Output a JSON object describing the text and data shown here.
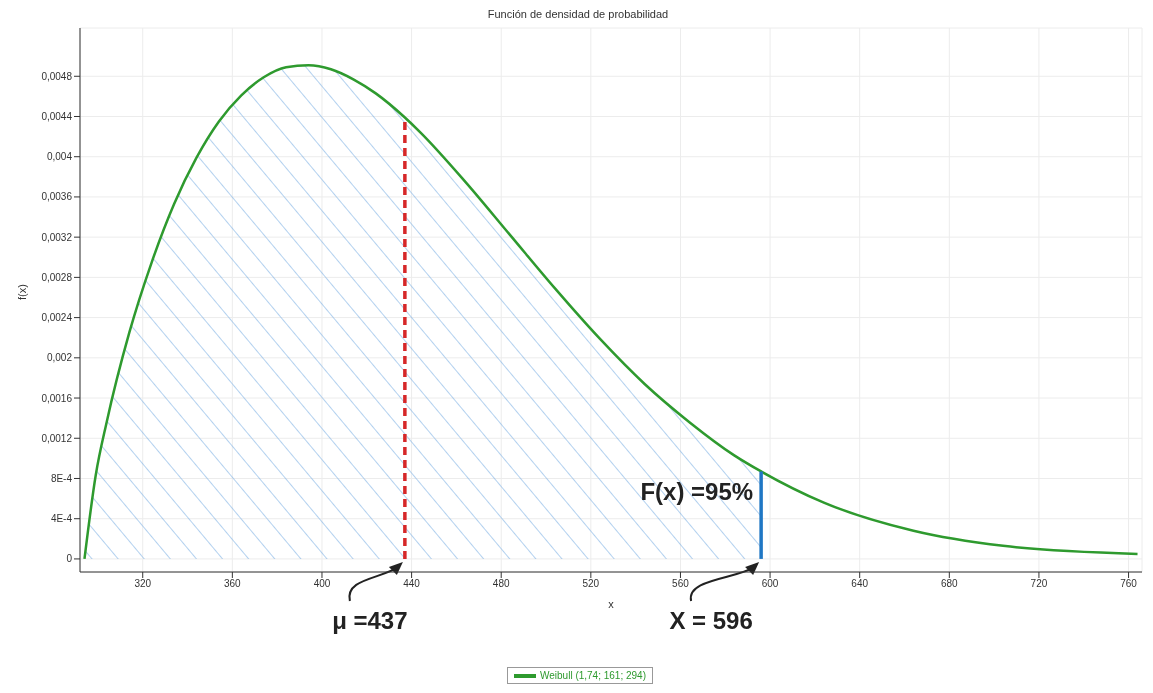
{
  "chart_data": {
    "type": "line",
    "title": "Función de densidad de probabilidad",
    "xlabel": "x",
    "ylabel": "f(x)",
    "xlim": [
      292,
      766
    ],
    "xticks": [
      320,
      360,
      400,
      440,
      480,
      520,
      560,
      600,
      640,
      680,
      720,
      760
    ],
    "ylim": [
      -0.00013,
      0.00528
    ],
    "yticks": [
      {
        "value": 0,
        "label": "0"
      },
      {
        "value": 0.0004,
        "label": "4E-4"
      },
      {
        "value": 0.0008,
        "label": "8E-4"
      },
      {
        "value": 0.0012,
        "label": "0,0012"
      },
      {
        "value": 0.0016,
        "label": "0,0016"
      },
      {
        "value": 0.002,
        "label": "0,002"
      },
      {
        "value": 0.0024,
        "label": "0,0024"
      },
      {
        "value": 0.0028,
        "label": "0,0028"
      },
      {
        "value": 0.0032,
        "label": "0,0032"
      },
      {
        "value": 0.0036,
        "label": "0,0036"
      },
      {
        "value": 0.004,
        "label": "0,004"
      },
      {
        "value": 0.0044,
        "label": "0,0044"
      },
      {
        "value": 0.0048,
        "label": "0,0048"
      }
    ],
    "grid": true,
    "legend": "bottom",
    "marker": "none",
    "line_style": "solid",
    "series": [
      {
        "type": "area",
        "color": "#7fb2e5",
        "x": [
          294,
          299,
          304,
          314,
          324,
          334,
          344,
          354,
          364,
          374,
          384,
          394,
          404,
          414,
          424,
          437,
          444,
          464,
          484,
          504,
          524,
          544,
          564,
          584,
          596
        ],
        "values": [
          0,
          0.00083,
          0.00137,
          0.00225,
          0.00295,
          0.00353,
          0.00399,
          0.00435,
          0.00461,
          0.00479,
          0.00489,
          0.00491,
          0.00487,
          0.00477,
          0.00463,
          0.00439,
          0.00424,
          0.00375,
          0.00322,
          0.00269,
          0.00219,
          0.00174,
          0.00136,
          0.00103,
          0.00087
        ]
      },
      {
        "name": "Weibull (1,74; 161; 294)",
        "color": "#2e9a2e",
        "x": [
          294,
          299,
          304,
          314,
          324,
          334,
          344,
          354,
          364,
          374,
          384,
          394,
          404,
          414,
          424,
          437,
          444,
          464,
          484,
          504,
          524,
          544,
          564,
          584,
          596,
          624,
          664,
          704,
          764
        ],
        "values": [
          0,
          0.00083,
          0.00137,
          0.00225,
          0.00295,
          0.00353,
          0.00399,
          0.00435,
          0.00461,
          0.00479,
          0.00489,
          0.00491,
          0.00487,
          0.00477,
          0.00463,
          0.00439,
          0.00424,
          0.00375,
          0.00322,
          0.00269,
          0.00219,
          0.00174,
          0.00136,
          0.00103,
          0.00087,
          0.00056,
          0.00028,
          0.00013,
          5e-05
        ]
      }
    ],
    "ref_lines": [
      {
        "axis": "x",
        "value": 437,
        "label": "μ =437",
        "color": "#d62728",
        "line_style": "dashed"
      },
      {
        "axis": "x",
        "value": 596,
        "label": "X = 596",
        "color": "#1f77c4",
        "line_style": "solid"
      }
    ],
    "annotations": [
      "F(x) =95%"
    ]
  }
}
